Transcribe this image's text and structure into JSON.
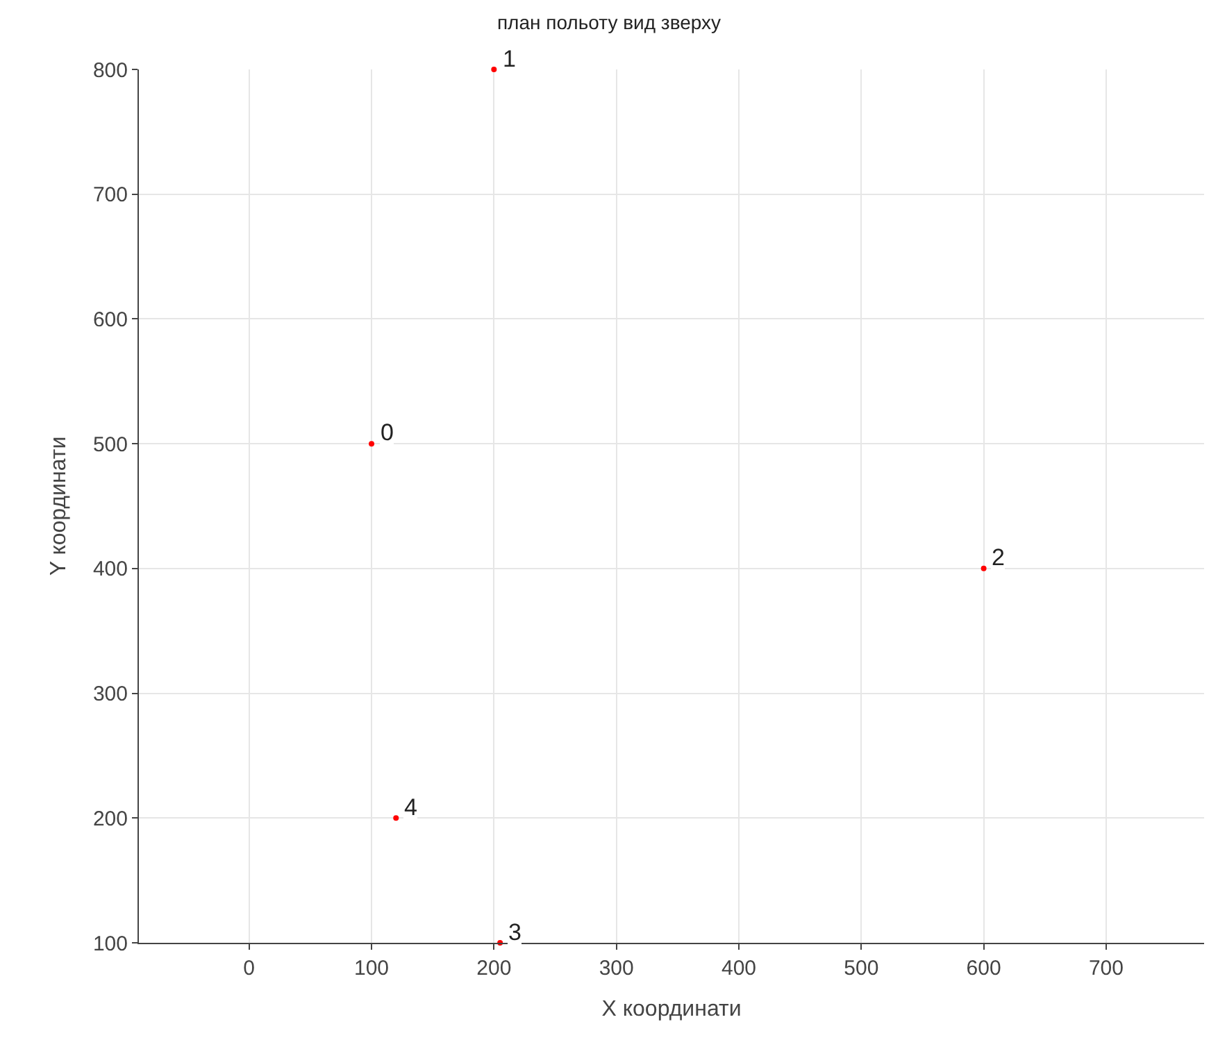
{
  "chart_data": {
    "type": "scatter",
    "title": "план польоту вид зверху",
    "xlabel": "X координати",
    "ylabel": "Y координати",
    "x": [
      100,
      200,
      600,
      205,
      120
    ],
    "series": [
      {
        "color": "#ff0000",
        "values": [
          500,
          800,
          400,
          100,
          200
        ]
      }
    ],
    "annotations": [
      {
        "text": "0",
        "x": 100,
        "y": 500
      },
      {
        "text": "1",
        "x": 200,
        "y": 800
      },
      {
        "text": "2",
        "x": 600,
        "y": 400
      },
      {
        "text": "3",
        "x": 205,
        "y": 100
      },
      {
        "text": "4",
        "x": 120,
        "y": 200
      }
    ],
    "xlim": [
      -90,
      780
    ],
    "xticks": [
      0,
      100,
      200,
      300,
      400,
      500,
      600,
      700
    ],
    "ylim": [
      100,
      800
    ],
    "yticks": [
      100,
      200,
      300,
      400,
      500,
      600,
      700,
      800
    ],
    "grid": true,
    "marker": "circle"
  }
}
